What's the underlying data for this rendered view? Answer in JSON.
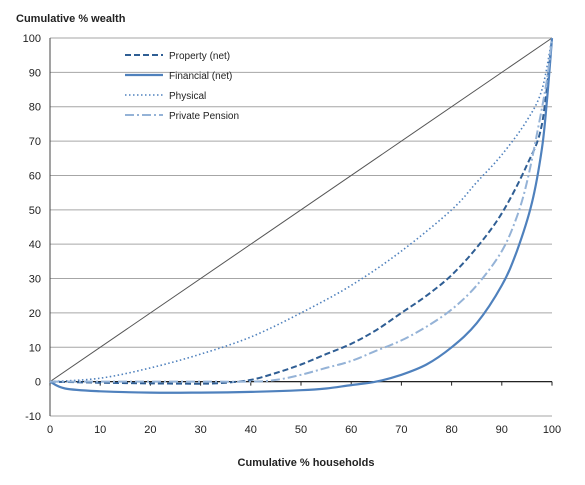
{
  "chart_data": {
    "type": "line",
    "title": "",
    "ylabel": "Cumulative % wealth",
    "xlabel": "Cumulative % households",
    "xlim": [
      0,
      100
    ],
    "ylim": [
      -10,
      100
    ],
    "xticks": [
      0,
      10,
      20,
      30,
      40,
      50,
      60,
      70,
      80,
      90,
      100
    ],
    "yticks": [
      -10,
      0,
      10,
      20,
      30,
      40,
      50,
      60,
      70,
      80,
      90,
      100
    ],
    "grid": "horizontal",
    "legend_position": "top-left",
    "colors": {
      "dark": "#2f5e94",
      "mid": "#4f81bd",
      "light": "#95b3d7",
      "diagonal": "#555555",
      "grid": "#a6a6a6"
    },
    "reference_line": {
      "x": [
        0,
        100
      ],
      "y": [
        0,
        100
      ]
    },
    "series": [
      {
        "name": "Property (net)",
        "style": "dashed",
        "color": "#2f5e94",
        "x": [
          0,
          10,
          20,
          30,
          35,
          40,
          45,
          50,
          55,
          60,
          65,
          70,
          75,
          80,
          85,
          90,
          95,
          98,
          100
        ],
        "y": [
          0,
          -0.3,
          -0.5,
          -0.6,
          -0.3,
          0.5,
          2.5,
          5,
          8,
          11,
          15,
          20,
          25,
          31,
          39,
          49,
          63,
          75,
          100
        ]
      },
      {
        "name": "Financial (net)",
        "style": "solid",
        "color": "#4f81bd",
        "x": [
          0,
          3,
          10,
          20,
          30,
          40,
          50,
          55,
          60,
          65,
          70,
          75,
          80,
          85,
          90,
          93,
          96,
          98,
          99,
          100
        ],
        "y": [
          0,
          -2,
          -2.8,
          -3.2,
          -3.2,
          -3,
          -2.5,
          -2,
          -1,
          0,
          2,
          5,
          10,
          17,
          28,
          38,
          52,
          68,
          82,
          100
        ]
      },
      {
        "name": "Physical",
        "style": "dotted",
        "color": "#4f81bd",
        "x": [
          0,
          10,
          20,
          30,
          40,
          50,
          60,
          70,
          80,
          85,
          90,
          95,
          98,
          100
        ],
        "y": [
          0,
          1,
          4,
          8,
          13,
          20,
          28,
          38,
          50,
          58,
          66,
          76,
          85,
          100
        ]
      },
      {
        "name": "Private Pension",
        "style": "dashdot",
        "color": "#95b3d7",
        "x": [
          0,
          10,
          20,
          30,
          40,
          45,
          50,
          55,
          60,
          65,
          70,
          75,
          80,
          85,
          90,
          93,
          95,
          97,
          99,
          100
        ],
        "y": [
          0,
          0,
          0,
          0,
          0,
          0.5,
          2,
          4,
          6,
          9,
          12,
          16,
          21,
          28,
          38,
          48,
          58,
          72,
          88,
          100
        ]
      }
    ]
  }
}
